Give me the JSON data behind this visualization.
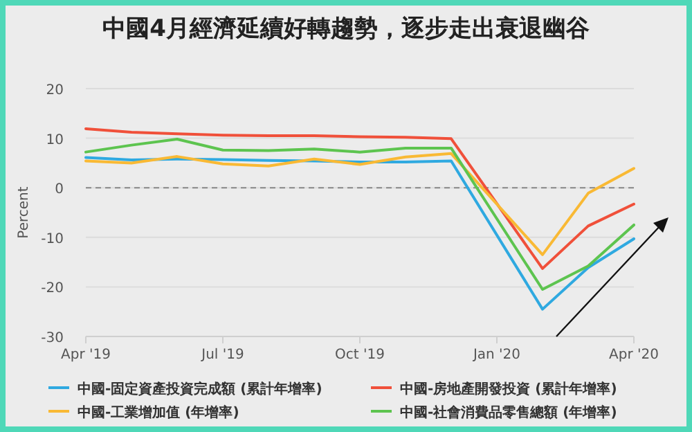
{
  "chart_data": {
    "type": "line",
    "title": "中國4月經濟延續好轉趨勢，逐步走出衰退幽谷",
    "ylabel": "Percent",
    "x": [
      "2019-04",
      "2019-05",
      "2019-06",
      "2019-07",
      "2019-08",
      "2019-09",
      "2019-10",
      "2019-11",
      "2019-12",
      "2020-02",
      "2020-03",
      "2020-04"
    ],
    "xlim": [
      "2019-04",
      "2020-04"
    ],
    "xticks": [
      {
        "value": "2019-04",
        "label": "Apr '19"
      },
      {
        "value": "2019-07",
        "label": "Jul '19"
      },
      {
        "value": "2019-10",
        "label": "Oct '19"
      },
      {
        "value": "2020-01",
        "label": "Jan '20"
      },
      {
        "value": "2020-04",
        "label": "Apr '20"
      }
    ],
    "ylim": [
      -30,
      20
    ],
    "yticks": [
      -30,
      -20,
      -10,
      0,
      10,
      20
    ],
    "grid": "y",
    "legend": "bottom",
    "marker": "none",
    "line_style": "solid",
    "ref_lines": [
      {
        "axis": "y",
        "value": 0,
        "color": "#888888",
        "line_style": "dashed"
      }
    ],
    "series": [
      {
        "name": "中國-固定資產投資完成額 (累計年增率)",
        "color": "#2fa9e0",
        "values": [
          6.1,
          5.6,
          5.8,
          5.7,
          5.5,
          5.4,
          5.2,
          5.2,
          5.4,
          -24.5,
          -16.1,
          -10.3
        ]
      },
      {
        "name": "中國-房地產開發投資 (累計年增率)",
        "color": "#f0503a",
        "values": [
          11.9,
          11.2,
          10.9,
          10.6,
          10.5,
          10.5,
          10.3,
          10.2,
          9.9,
          -16.3,
          -7.7,
          -3.3
        ]
      },
      {
        "name": "中國-工業增加值 (年增率)",
        "color": "#f9b934",
        "values": [
          5.4,
          5.0,
          6.3,
          4.8,
          4.4,
          5.8,
          4.7,
          6.2,
          6.9,
          -13.5,
          -1.1,
          3.9
        ]
      },
      {
        "name": "中國-社會消費品零售總額 (年增率)",
        "color": "#5dc44f",
        "values": [
          7.2,
          8.6,
          9.8,
          7.6,
          7.5,
          7.8,
          7.2,
          8.0,
          8.0,
          -20.5,
          -15.8,
          -7.5
        ]
      }
    ]
  }
}
